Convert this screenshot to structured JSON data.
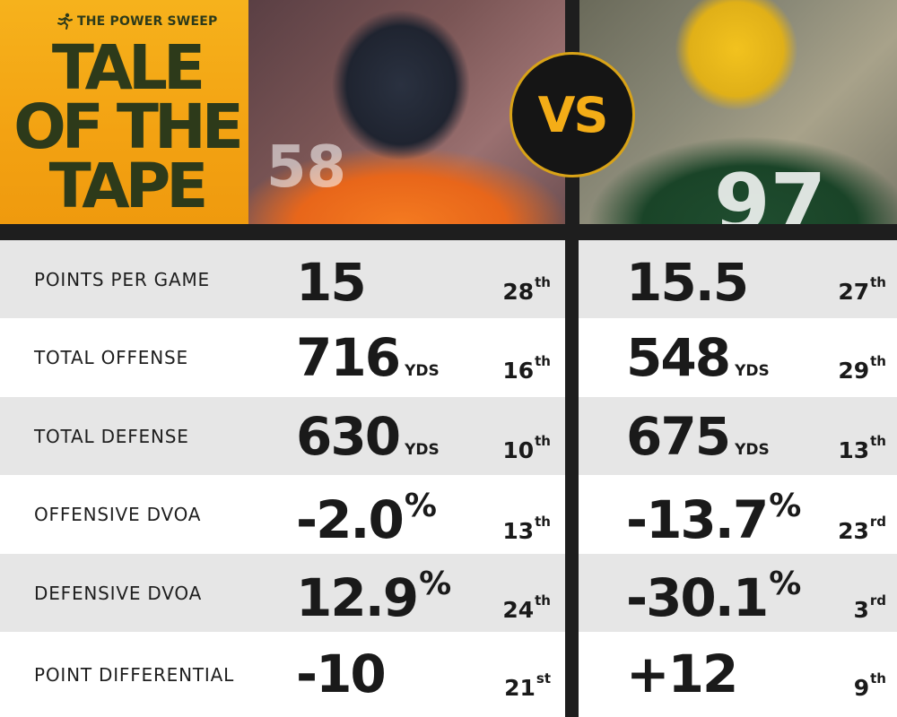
{
  "brand": {
    "name": "THE POWER SWEEP",
    "icon": "runner-icon"
  },
  "title": {
    "line1": "TALE",
    "line2": "OF THE",
    "line3": "TAPE"
  },
  "vs": "VS",
  "colors": {
    "accent": "#f4ad17",
    "title": "#2d3a1a",
    "dark": "#1e1e1e"
  },
  "rows": [
    {
      "label": "POINTS PER GAME",
      "left": {
        "value": "15",
        "unit": "",
        "pct": "",
        "rank": "28",
        "suffix": "th"
      },
      "right": {
        "value": "15.5",
        "unit": "",
        "pct": "",
        "rank": "27",
        "suffix": "th"
      }
    },
    {
      "label": "TOTAL OFFENSE",
      "left": {
        "value": "716",
        "unit": "YDS",
        "pct": "",
        "rank": "16",
        "suffix": "th"
      },
      "right": {
        "value": "548",
        "unit": "YDS",
        "pct": "",
        "rank": "29",
        "suffix": "th"
      }
    },
    {
      "label": "TOTAL DEFENSE",
      "left": {
        "value": "630",
        "unit": "YDS",
        "pct": "",
        "rank": "10",
        "suffix": "th"
      },
      "right": {
        "value": "675",
        "unit": "YDS",
        "pct": "",
        "rank": "13",
        "suffix": "th"
      }
    },
    {
      "label": "OFFENSIVE DVOA",
      "left": {
        "value": "-2.0",
        "unit": "",
        "pct": "%",
        "rank": "13",
        "suffix": "th"
      },
      "right": {
        "value": "-13.7",
        "unit": "",
        "pct": "%",
        "rank": "23",
        "suffix": "rd"
      }
    },
    {
      "label": "DEFENSIVE DVOA",
      "left": {
        "value": "12.9",
        "unit": "",
        "pct": "%",
        "rank": "24",
        "suffix": "th"
      },
      "right": {
        "value": "-30.1",
        "unit": "",
        "pct": "%",
        "rank": "3",
        "suffix": "rd"
      }
    },
    {
      "label": "POINT DIFFERENTIAL",
      "left": {
        "value": "-10",
        "unit": "",
        "pct": "",
        "rank": "21",
        "suffix": "st"
      },
      "right": {
        "value": "+12",
        "unit": "",
        "pct": "",
        "rank": "9",
        "suffix": "th"
      }
    }
  ]
}
